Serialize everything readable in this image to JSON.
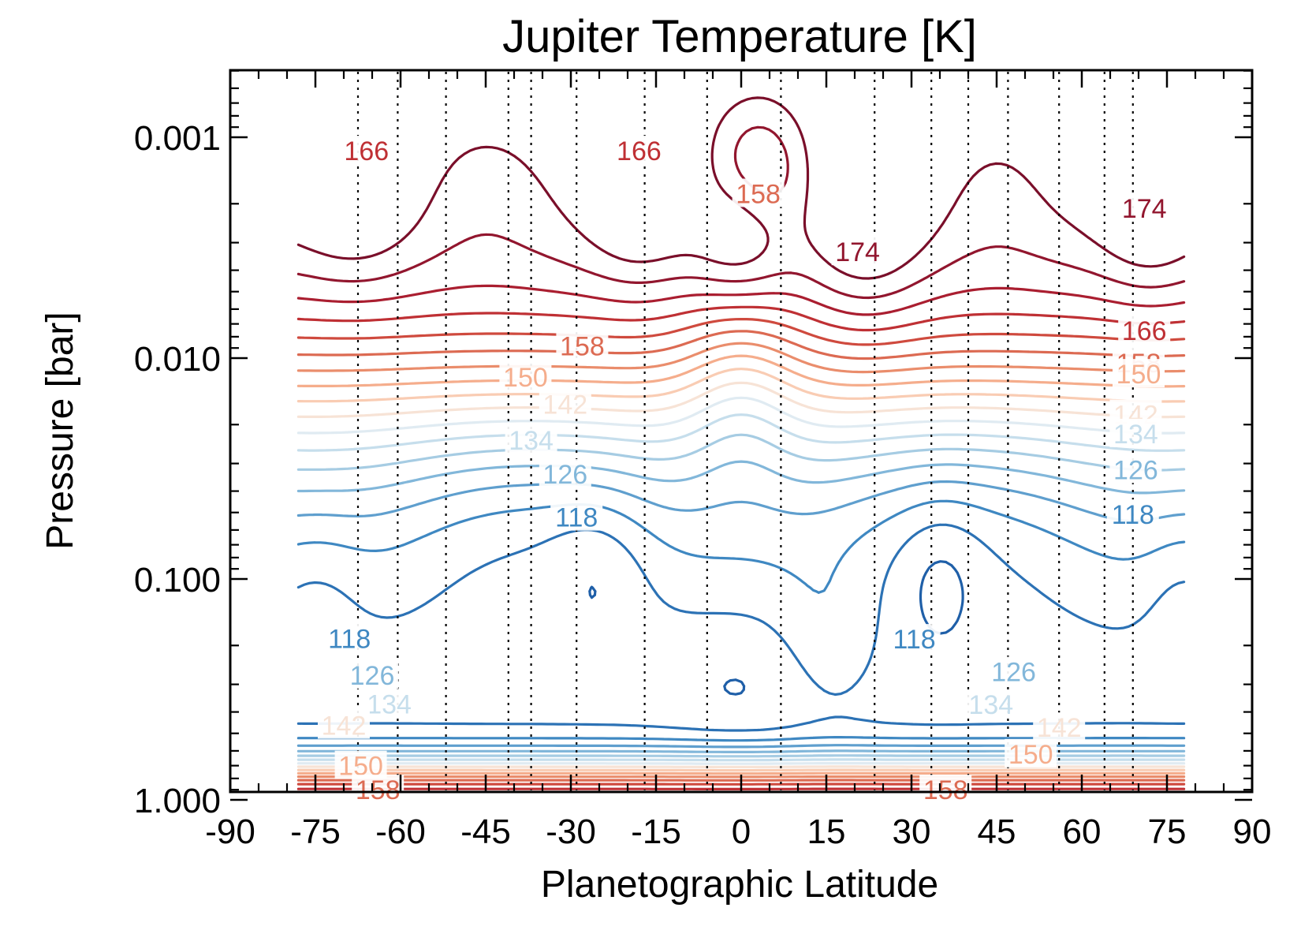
{
  "chart_data": {
    "type": "contour",
    "title": "Jupiter Temperature [K]",
    "xlabel": "Planetographic Latitude",
    "ylabel": "Pressure [bar]",
    "xlim": [
      -90,
      90
    ],
    "ylim_pressure": [
      0.0006,
      1.3
    ],
    "yscale": "log",
    "y_reversed": true,
    "xticks": [
      "-90",
      "-75",
      "-60",
      "-45",
      "-30",
      "-15",
      "0",
      "15",
      "30",
      "45",
      "60",
      "75",
      "90"
    ],
    "xtick_values": [
      -90,
      -75,
      -60,
      -45,
      -30,
      -15,
      0,
      15,
      30,
      45,
      60,
      75,
      90
    ],
    "yticks": [
      "0.001",
      "0.010",
      "0.100",
      "1.000"
    ],
    "ytick_values": [
      0.001,
      0.01,
      0.1,
      1.0
    ],
    "data_lat_range": [
      -78,
      78
    ],
    "contour_levels": [
      110,
      114,
      118,
      122,
      126,
      130,
      134,
      138,
      142,
      146,
      150,
      154,
      158,
      162,
      166,
      170,
      174,
      178
    ],
    "colormap": {
      "110": "#1f5fa8",
      "114": "#2c72b5",
      "118": "#3f88c2",
      "122": "#5f9fce",
      "126": "#82b7da",
      "130": "#a6cce3",
      "134": "#c6deec",
      "138": "#e0ebf2",
      "142": "#f7e3d6",
      "146": "#f9ccb3",
      "150": "#f5ad8c",
      "154": "#ea8d6c",
      "158": "#dc6a52",
      "162": "#cf4a3e",
      "166": "#bf3034",
      "170": "#aa1e30",
      "174": "#92162e",
      "178": "#7a0f2a"
    },
    "dotted_latitudes": [
      -67.5,
      -60.5,
      -52,
      -41,
      -37,
      -29,
      -17,
      -6,
      7,
      23.5,
      33.5,
      40,
      47,
      56,
      64,
      69
    ],
    "contour_labels": [
      {
        "text": "166",
        "lat": -66,
        "p": 0.00115,
        "level": 166
      },
      {
        "text": "166",
        "lat": -18,
        "p": 0.00115,
        "level": 166
      },
      {
        "text": "158",
        "lat": 3,
        "p": 0.0018,
        "level": 158
      },
      {
        "text": "174",
        "lat": 20.5,
        "p": 0.0033,
        "level": 174
      },
      {
        "text": "174",
        "lat": 71,
        "p": 0.0021,
        "level": 174
      },
      {
        "text": "166",
        "lat": 71,
        "p": 0.0075,
        "level": 166
      },
      {
        "text": "158",
        "lat": 70,
        "p": 0.0105,
        "level": 158
      },
      {
        "text": "150",
        "lat": 70,
        "p": 0.0118,
        "level": 150
      },
      {
        "text": "142",
        "lat": 69.5,
        "p": 0.018,
        "level": 142
      },
      {
        "text": "134",
        "lat": 69.5,
        "p": 0.022,
        "level": 134
      },
      {
        "text": "126",
        "lat": 69.5,
        "p": 0.032,
        "level": 126
      },
      {
        "text": "118",
        "lat": 69,
        "p": 0.051,
        "level": 118
      },
      {
        "text": "158",
        "lat": -28,
        "p": 0.0088,
        "level": 158
      },
      {
        "text": "150",
        "lat": -38,
        "p": 0.0122,
        "level": 150
      },
      {
        "text": "142",
        "lat": -31,
        "p": 0.0162,
        "level": 142
      },
      {
        "text": "134",
        "lat": -37,
        "p": 0.0235,
        "level": 134
      },
      {
        "text": "126",
        "lat": -31,
        "p": 0.0335,
        "level": 126
      },
      {
        "text": "118",
        "lat": -29,
        "p": 0.0525,
        "level": 118
      },
      {
        "text": "118",
        "lat": -69,
        "p": 0.186,
        "level": 118
      },
      {
        "text": "118",
        "lat": 30.5,
        "p": 0.187,
        "level": 118
      },
      {
        "text": "126",
        "lat": -65,
        "p": 0.273,
        "level": 126
      },
      {
        "text": "126",
        "lat": 48,
        "p": 0.263,
        "level": 126
      },
      {
        "text": "134",
        "lat": -62,
        "p": 0.368,
        "level": 134
      },
      {
        "text": "134",
        "lat": 44,
        "p": 0.37,
        "level": 134
      },
      {
        "text": "142",
        "lat": -70,
        "p": 0.46,
        "level": 142
      },
      {
        "text": "142",
        "lat": 56,
        "p": 0.47,
        "level": 142
      },
      {
        "text": "150",
        "lat": -67,
        "p": 0.7,
        "level": 150
      },
      {
        "text": "150",
        "lat": 51,
        "p": 0.62,
        "level": 150
      },
      {
        "text": "158",
        "lat": -64,
        "p": 0.9,
        "level": 158
      },
      {
        "text": "158",
        "lat": 36,
        "p": 0.9,
        "level": 158
      }
    ]
  }
}
